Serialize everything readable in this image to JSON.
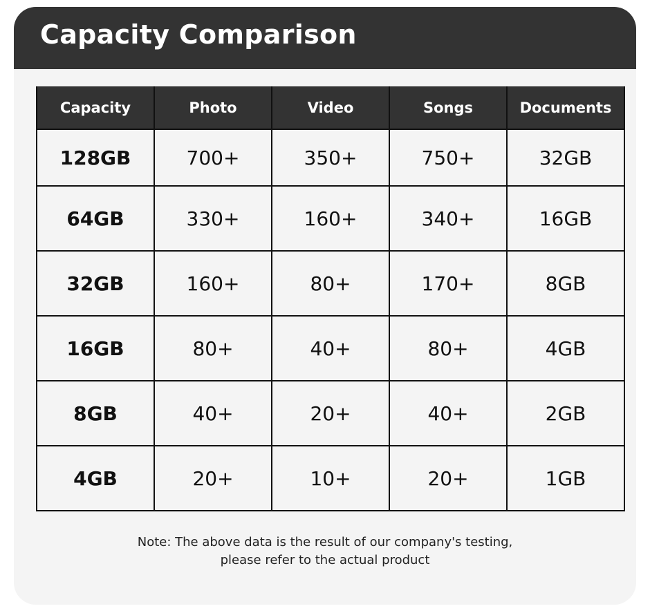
{
  "title": "Capacity Comparison",
  "table": {
    "headers": [
      "Capacity",
      "Photo",
      "Video",
      "Songs",
      "Documents"
    ],
    "rows": [
      [
        "128GB",
        "700+",
        "350+",
        "750+",
        "32GB"
      ],
      [
        "64GB",
        "330+",
        "160+",
        "340+",
        "16GB"
      ],
      [
        "32GB",
        "160+",
        "80+",
        "170+",
        "8GB"
      ],
      [
        "16GB",
        "80+",
        "40+",
        "80+",
        "4GB"
      ],
      [
        "8GB",
        "40+",
        "20+",
        "40+",
        "2GB"
      ],
      [
        "4GB",
        "20+",
        "10+",
        "20+",
        "1GB"
      ]
    ]
  },
  "note": {
    "line1": "Note: The above data is the result of our company's testing,",
    "line2": "please refer to the actual product"
  },
  "colors": {
    "header": "#333333",
    "background": "#f4f4f4"
  }
}
